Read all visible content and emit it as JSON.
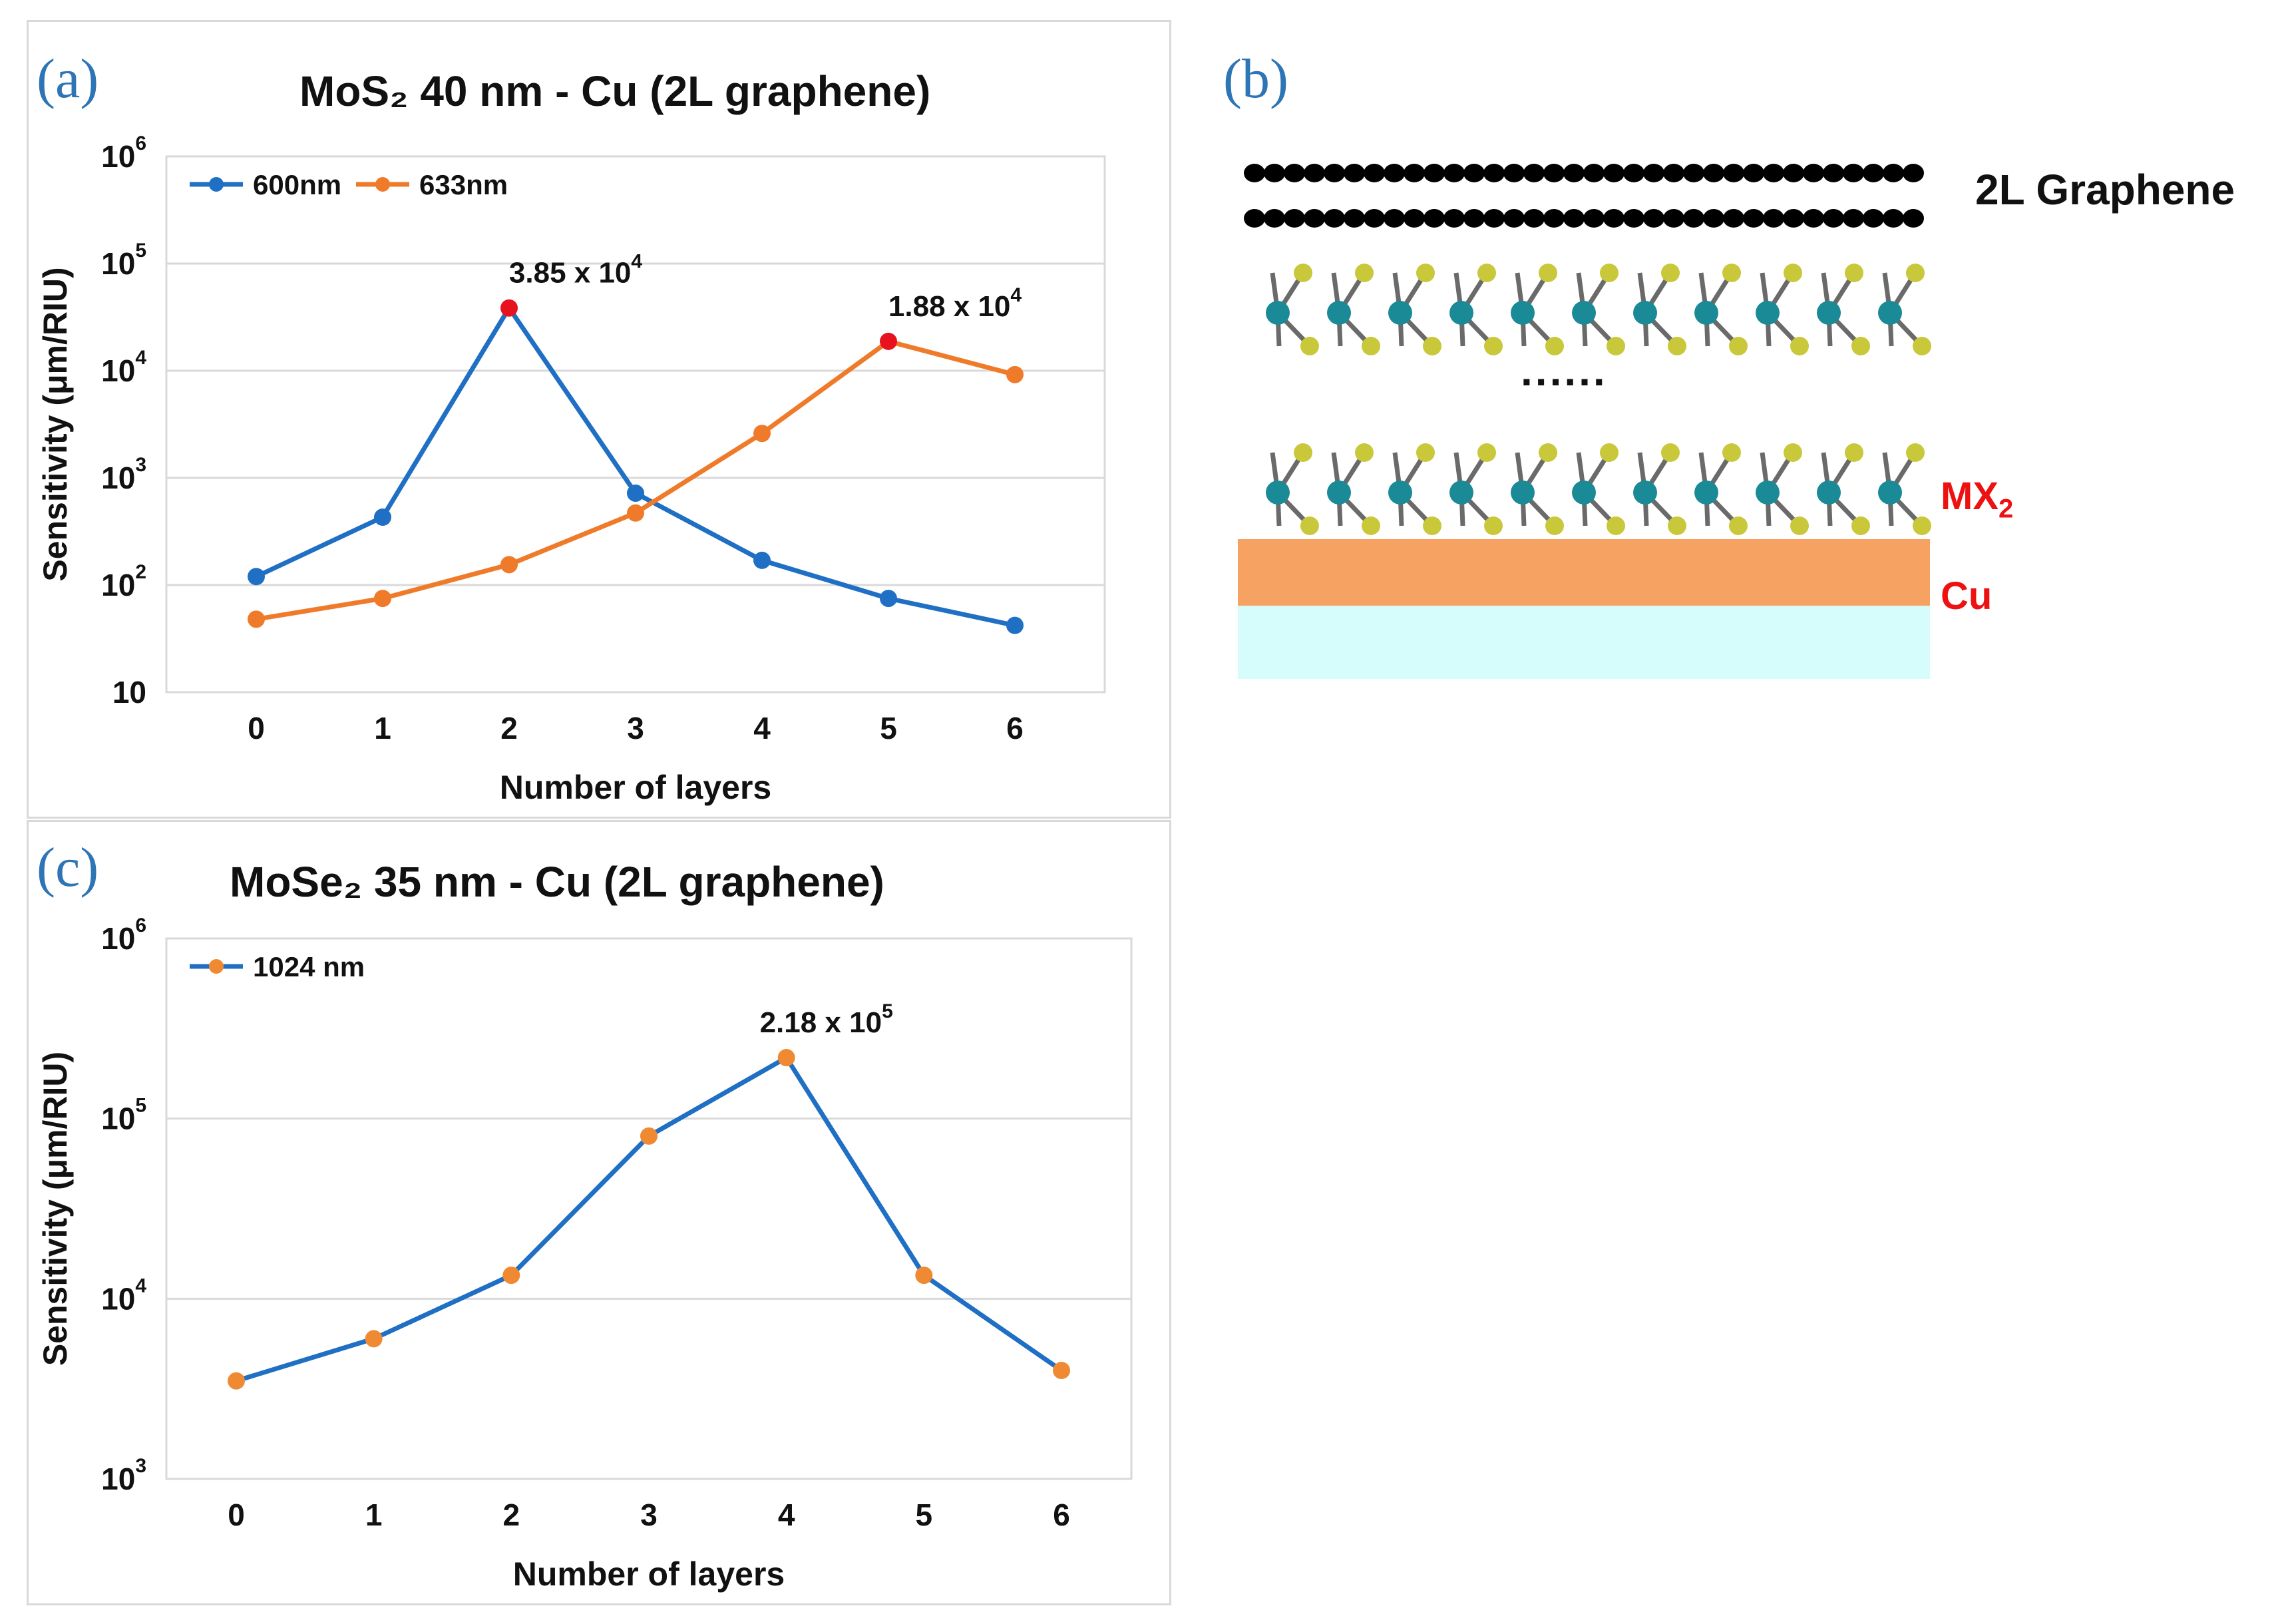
{
  "panels": {
    "a": {
      "letter": "(a)",
      "title": "MoS₂ 40 nm - Cu (2L graphene)"
    },
    "b": {
      "letter": "(b)"
    },
    "c": {
      "letter": "(c)",
      "title": "MoSe₂ 35 nm - Cu (2L graphene)"
    }
  },
  "schematic": {
    "graphene_label": "2L Graphene",
    "mx2_label": "MX",
    "mx2_sub": "2",
    "cu_label": "Cu",
    "ellipsis": "......",
    "colors": {
      "mo": "#1a8a96",
      "s": "#c8c83a",
      "cu": "#f5a263",
      "substrate": "#d6fcfc",
      "label_red": "#ee1111"
    }
  },
  "chart_data": [
    {
      "type": "line",
      "title": "MoS₂ 40 nm - Cu (2L graphene)",
      "xlabel": "Number of layers",
      "ylabel": "Sensitivity (μm/RIU)",
      "yscale": "log",
      "ylim": [
        10,
        1000000
      ],
      "x": [
        0,
        1,
        2,
        3,
        4,
        5,
        6
      ],
      "xticks": [
        "0",
        "1",
        "2",
        "3",
        "4",
        "5",
        "6"
      ],
      "yticks": [
        {
          "value": 10,
          "base": "10",
          "exp": ""
        },
        {
          "value": 100,
          "base": "10",
          "exp": "2"
        },
        {
          "value": 1000,
          "base": "10",
          "exp": "3"
        },
        {
          "value": 10000,
          "base": "10",
          "exp": "4"
        },
        {
          "value": 100000,
          "base": "10",
          "exp": "5"
        },
        {
          "value": 1000000,
          "base": "10",
          "exp": "6"
        }
      ],
      "series": [
        {
          "name": "600nm",
          "color": "#1f6fc4",
          "values": [
            120,
            430,
            38500,
            720,
            170,
            75,
            42
          ],
          "highlight_index": 2
        },
        {
          "name": "633nm",
          "color": "#ef7b2a",
          "values": [
            48,
            75,
            155,
            470,
            2600,
            18800,
            9200
          ],
          "highlight_index": 5
        }
      ],
      "highlight_color": "#e8121e",
      "annotations": [
        {
          "base": "3.85 x 10",
          "exp": "4",
          "x": 2,
          "y": 38500
        },
        {
          "base": "1.88 x 10",
          "exp": "4",
          "x": 5,
          "y": 18800
        }
      ],
      "legend": "top-left",
      "grid": true
    },
    {
      "type": "line",
      "title": "MoSe₂ 35 nm - Cu (2L graphene)",
      "xlabel": "Number of layers",
      "ylabel": "Sensitivity (μm/RIU)",
      "yscale": "log",
      "ylim": [
        1000,
        1000000
      ],
      "x": [
        0,
        1,
        2,
        3,
        4,
        5,
        6
      ],
      "xticks": [
        "0",
        "1",
        "2",
        "3",
        "4",
        "5",
        "6"
      ],
      "yticks": [
        {
          "value": 1000,
          "base": "10",
          "exp": "3"
        },
        {
          "value": 10000,
          "base": "10",
          "exp": "4"
        },
        {
          "value": 100000,
          "base": "10",
          "exp": "5"
        },
        {
          "value": 1000000,
          "base": "10",
          "exp": "6"
        }
      ],
      "series": [
        {
          "name": "1024 nm",
          "color": "#1f6fc4",
          "marker_color": "#f08a32",
          "values": [
            3500,
            6000,
            13500,
            80000,
            218000,
            13500,
            4000
          ]
        }
      ],
      "annotations": [
        {
          "base": "2.18 x 10",
          "exp": "5",
          "x": 4,
          "y": 218000
        }
      ],
      "legend": "top-left",
      "grid": true
    }
  ]
}
